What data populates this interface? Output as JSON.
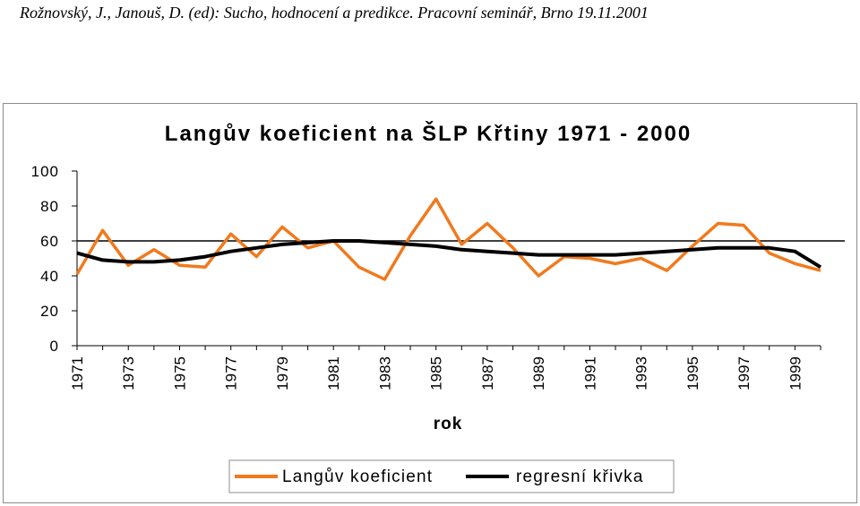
{
  "citation": "Rožnovský, J., Janouš, D. (ed): Sucho, hodnocení a predikce. Pracovní seminář, Brno 19.11.2001",
  "colors": {
    "series": "#f07a1e",
    "regression": "#000000",
    "reference": "#000000",
    "frame": "#8c8c8c"
  },
  "chart_data": {
    "type": "line",
    "title": "Langův koeficient na ŠLP Křtiny 1971 - 2000",
    "xlabel": "rok",
    "ylabel": "",
    "ylim": [
      0,
      100
    ],
    "yticks": [
      "100",
      "80",
      "60",
      "40",
      "20",
      "0"
    ],
    "xticks": [
      "1971",
      "1973",
      "1975",
      "1977",
      "1979",
      "1981",
      "1983",
      "1985",
      "1987",
      "1989",
      "1991",
      "1993",
      "1995",
      "1997",
      "1999"
    ],
    "x": [
      1971,
      1972,
      1973,
      1974,
      1975,
      1976,
      1977,
      1978,
      1979,
      1980,
      1981,
      1982,
      1983,
      1984,
      1985,
      1986,
      1987,
      1988,
      1989,
      1990,
      1991,
      1992,
      1993,
      1994,
      1995,
      1996,
      1997,
      1998,
      1999,
      2000
    ],
    "reference_line": 60,
    "series": [
      {
        "name": "Langův koeficient",
        "values": [
          41,
          66,
          46,
          55,
          46,
          45,
          64,
          51,
          68,
          56,
          60,
          45,
          38,
          63,
          84,
          58,
          70,
          56,
          40,
          51,
          50,
          47,
          50,
          43,
          57,
          70,
          69,
          53,
          47,
          43
        ]
      },
      {
        "name": "regresní křivka",
        "values": [
          53,
          49,
          48,
          48,
          49,
          51,
          54,
          56,
          58,
          59,
          60,
          60,
          59,
          58,
          57,
          55,
          54,
          53,
          52,
          52,
          52,
          52,
          53,
          54,
          55,
          56,
          56,
          56,
          54,
          45
        ]
      }
    ],
    "legend": [
      "Langův koeficient",
      "regresní křivka"
    ]
  }
}
